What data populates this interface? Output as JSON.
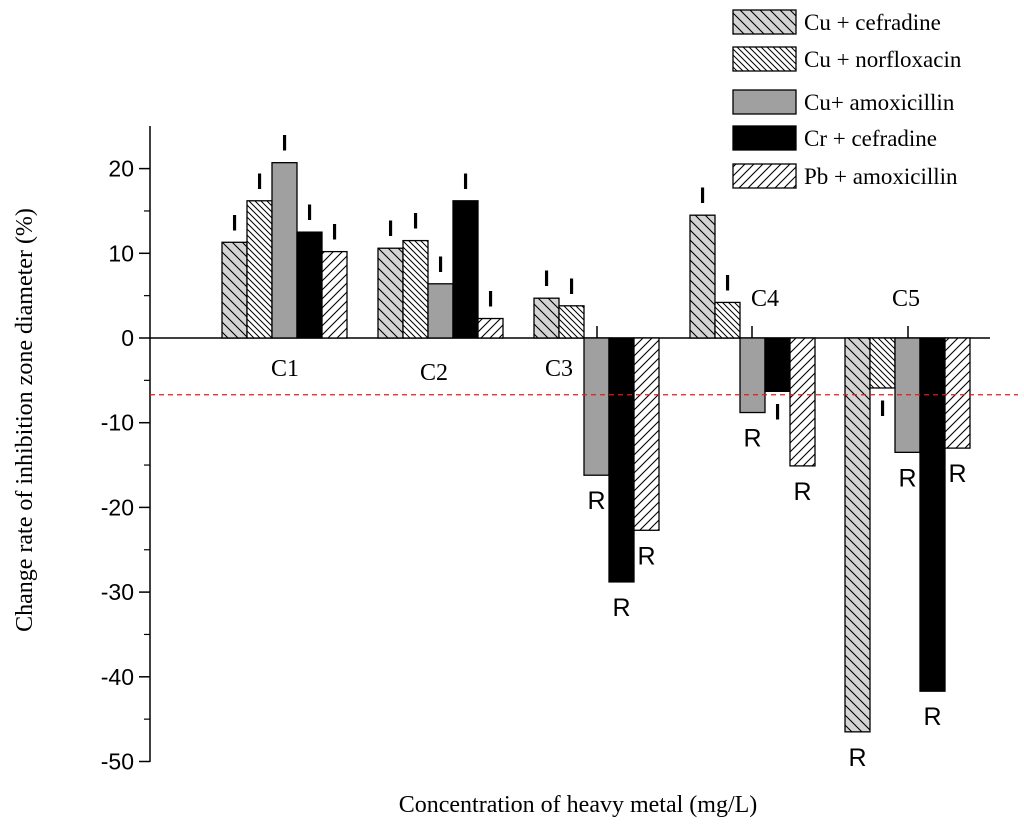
{
  "chart_data": {
    "type": "bar",
    "ylabel": "Change rate of inhibition zone diameter (%)",
    "xlabel": "Concentration of heavy metal (mg/L)",
    "ylim": [
      -50,
      25
    ],
    "yticks": [
      20,
      10,
      0,
      -10,
      -20,
      -30,
      -40,
      -50
    ],
    "ytick_labels": [
      "20",
      "10",
      "0",
      "-10",
      "-20",
      "-30",
      "-40",
      "-50"
    ],
    "categories": [
      "C1",
      "C2",
      "C3",
      "C4",
      "C5"
    ],
    "threshold": -6.7,
    "threshold_color": "#e41a1c",
    "series": [
      {
        "name": "Cu + cefradine",
        "values": [
          11.3,
          10.6,
          4.7,
          14.5,
          -46.5
        ],
        "labels": [
          "I",
          "I",
          "I",
          "I",
          "R"
        ]
      },
      {
        "name": "Cu + norfloxacin",
        "values": [
          16.2,
          11.5,
          3.8,
          4.2,
          -5.9
        ],
        "labels": [
          "I",
          "I",
          "I",
          "I",
          "I"
        ]
      },
      {
        "name": "Cu+ amoxicillin",
        "values": [
          20.7,
          6.4,
          -16.2,
          -8.8,
          -13.5
        ],
        "labels": [
          "I",
          "I",
          "R",
          "R",
          "R"
        ]
      },
      {
        "name": "Cr + cefradine",
        "values": [
          12.5,
          16.2,
          -28.8,
          -6.3,
          -41.7
        ],
        "labels": [
          "I",
          "I",
          "R",
          "I",
          "R"
        ]
      },
      {
        "name": "Pb + amoxicillin",
        "values": [
          10.2,
          2.3,
          -22.7,
          -15.1,
          -13.0
        ],
        "labels": [
          "I",
          "I",
          "R",
          "R",
          "R"
        ]
      }
    ]
  }
}
